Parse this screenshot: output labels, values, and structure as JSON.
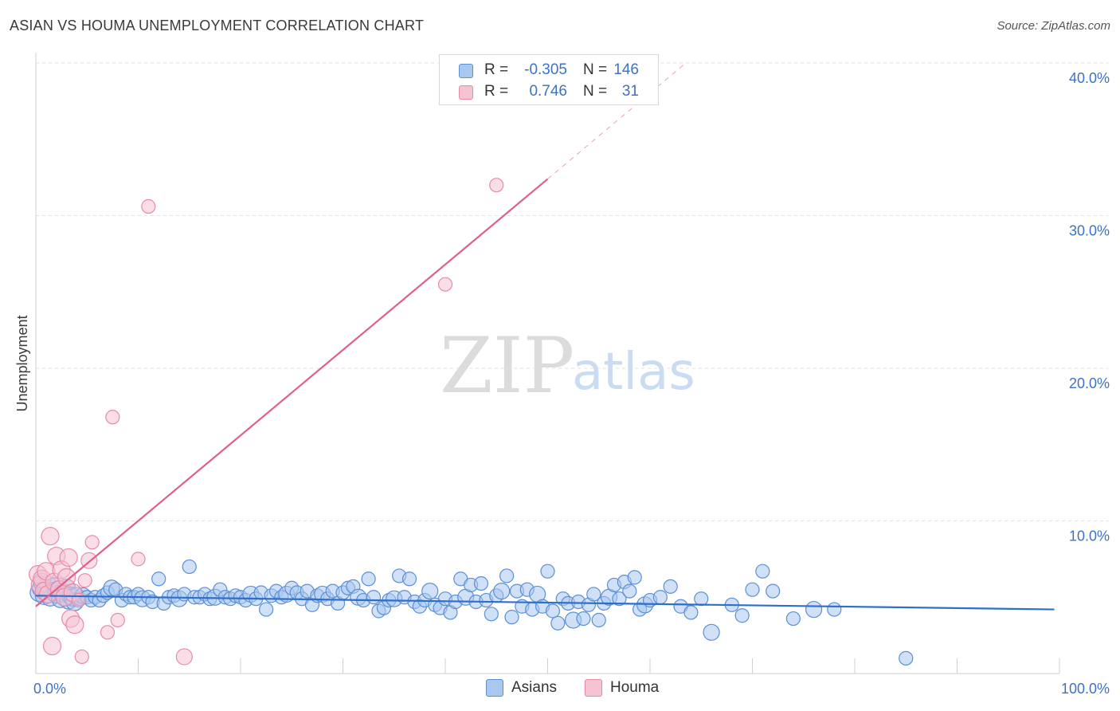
{
  "title": "ASIAN VS HOUMA UNEMPLOYMENT CORRELATION CHART",
  "source": "Source: ZipAtlas.com",
  "watermark": {
    "zip": "ZIP",
    "atlas": "atlas"
  },
  "legend": {
    "rows": [
      {
        "r_label": "R =",
        "r_value": "-0.305",
        "n_label": "N =",
        "n_value": "146"
      },
      {
        "r_label": "R =",
        "r_value": "0.746",
        "n_label": "N =",
        "n_value": "31"
      }
    ]
  },
  "colors": {
    "asians_fill": "#a9c8f0",
    "asians_stroke": "#5b8fd6",
    "asians_line": "#2f6fc9",
    "houma_fill": "#f6c3d3",
    "houma_stroke": "#e88aa8",
    "houma_line": "#e0608a",
    "tick_text": "#3d72c4",
    "grid": "#e2e2e2"
  },
  "chart_data": {
    "type": "scatter",
    "title": "ASIAN VS HOUMA UNEMPLOYMENT CORRELATION CHART",
    "xlabel": "",
    "ylabel": "Unemployment",
    "xlim": [
      0,
      100
    ],
    "ylim": [
      0,
      40
    ],
    "x_tick_labels": [
      {
        "value": 0,
        "label": "0.0%"
      },
      {
        "value": 100,
        "label": "100.0%"
      }
    ],
    "y_tick_labels": [
      {
        "value": 10,
        "label": "10.0%"
      },
      {
        "value": 20,
        "label": "20.0%"
      },
      {
        "value": 30,
        "label": "30.0%"
      },
      {
        "value": 40,
        "label": "40.0%"
      }
    ],
    "series": [
      {
        "name": "Asians",
        "r": -0.305,
        "n": 146,
        "trend": {
          "x": [
            0,
            99.5
          ],
          "y": [
            5.1,
            4.2
          ]
        },
        "points": [
          [
            0.3,
            5.3
          ],
          [
            0.5,
            5.6
          ],
          [
            0.6,
            6.0
          ],
          [
            0.8,
            5.1
          ],
          [
            1,
            5.5
          ],
          [
            1.2,
            5.8
          ],
          [
            1.4,
            5.0
          ],
          [
            1.6,
            5.4
          ],
          [
            1.8,
            5.7
          ],
          [
            2,
            5.2
          ],
          [
            2.2,
            5.5
          ],
          [
            2.4,
            4.9
          ],
          [
            2.6,
            5.3
          ],
          [
            2.8,
            5.0
          ],
          [
            3,
            5.6
          ],
          [
            3.2,
            4.8
          ],
          [
            3.4,
            5.1
          ],
          [
            3.6,
            5.0
          ],
          [
            3.8,
            4.7
          ],
          [
            4,
            5.2
          ],
          [
            4.3,
            4.9
          ],
          [
            4.6,
            5.1
          ],
          [
            5,
            5.0
          ],
          [
            5.4,
            4.8
          ],
          [
            5.8,
            5.0
          ],
          [
            6.2,
            4.8
          ],
          [
            6.6,
            5.1
          ],
          [
            7,
            5.3
          ],
          [
            7.4,
            5.6
          ],
          [
            7.8,
            5.5
          ],
          [
            8.4,
            4.8
          ],
          [
            8.8,
            5.2
          ],
          [
            9.2,
            5.0
          ],
          [
            9.6,
            5.0
          ],
          [
            10,
            5.2
          ],
          [
            10.4,
            4.9
          ],
          [
            11,
            5.0
          ],
          [
            11.4,
            4.7
          ],
          [
            12,
            6.2
          ],
          [
            12.5,
            4.6
          ],
          [
            13,
            5.0
          ],
          [
            13.5,
            5.1
          ],
          [
            14,
            4.9
          ],
          [
            14.5,
            5.2
          ],
          [
            15,
            7.0
          ],
          [
            15.5,
            5.0
          ],
          [
            16,
            5.0
          ],
          [
            16.5,
            5.2
          ],
          [
            17,
            4.9
          ],
          [
            17.5,
            5.0
          ],
          [
            18,
            5.5
          ],
          [
            18.5,
            5.0
          ],
          [
            19,
            4.9
          ],
          [
            19.5,
            5.1
          ],
          [
            20,
            5.0
          ],
          [
            20.5,
            4.8
          ],
          [
            21,
            5.2
          ],
          [
            21.5,
            4.9
          ],
          [
            22,
            5.3
          ],
          [
            22.5,
            4.2
          ],
          [
            23,
            5.1
          ],
          [
            23.5,
            5.4
          ],
          [
            24,
            5.0
          ],
          [
            24.5,
            5.2
          ],
          [
            25,
            5.6
          ],
          [
            25.5,
            5.3
          ],
          [
            26,
            4.9
          ],
          [
            26.5,
            5.4
          ],
          [
            27,
            4.5
          ],
          [
            27.5,
            5.1
          ],
          [
            28,
            5.2
          ],
          [
            28.5,
            4.9
          ],
          [
            29,
            5.4
          ],
          [
            29.5,
            4.6
          ],
          [
            30,
            5.3
          ],
          [
            30.5,
            5.6
          ],
          [
            31,
            5.7
          ],
          [
            31.5,
            5.0
          ],
          [
            32,
            4.8
          ],
          [
            32.5,
            6.2
          ],
          [
            33,
            5.0
          ],
          [
            33.5,
            4.1
          ],
          [
            34,
            4.3
          ],
          [
            34.5,
            4.8
          ],
          [
            35,
            4.9
          ],
          [
            35.5,
            6.4
          ],
          [
            36,
            5.0
          ],
          [
            36.5,
            6.2
          ],
          [
            37,
            4.7
          ],
          [
            37.5,
            4.4
          ],
          [
            38,
            4.8
          ],
          [
            38.5,
            5.4
          ],
          [
            39,
            4.5
          ],
          [
            39.5,
            4.3
          ],
          [
            40,
            4.9
          ],
          [
            40.5,
            4.0
          ],
          [
            41,
            4.7
          ],
          [
            41.5,
            6.2
          ],
          [
            42,
            5.0
          ],
          [
            42.5,
            5.8
          ],
          [
            43,
            4.7
          ],
          [
            43.5,
            5.9
          ],
          [
            44,
            4.8
          ],
          [
            44.5,
            3.9
          ],
          [
            45,
            5.1
          ],
          [
            45.5,
            5.4
          ],
          [
            46,
            6.4
          ],
          [
            46.5,
            3.7
          ],
          [
            47,
            5.4
          ],
          [
            47.5,
            4.4
          ],
          [
            48,
            5.5
          ],
          [
            48.5,
            4.2
          ],
          [
            49,
            5.2
          ],
          [
            49.5,
            4.4
          ],
          [
            50,
            6.7
          ],
          [
            50.5,
            4.1
          ],
          [
            51,
            3.3
          ],
          [
            51.5,
            4.9
          ],
          [
            52,
            4.6
          ],
          [
            52.5,
            3.5
          ],
          [
            53,
            4.7
          ],
          [
            53.5,
            3.6
          ],
          [
            54,
            4.5
          ],
          [
            54.5,
            5.2
          ],
          [
            55,
            3.5
          ],
          [
            55.5,
            4.6
          ],
          [
            56,
            5.0
          ],
          [
            56.5,
            5.8
          ],
          [
            57,
            4.9
          ],
          [
            57.5,
            6.0
          ],
          [
            58,
            5.4
          ],
          [
            58.5,
            6.3
          ],
          [
            59,
            4.2
          ],
          [
            59.5,
            4.5
          ],
          [
            60,
            4.8
          ],
          [
            61,
            5.0
          ],
          [
            62,
            5.7
          ],
          [
            63,
            4.4
          ],
          [
            64,
            4.0
          ],
          [
            65,
            4.9
          ],
          [
            66,
            2.7
          ],
          [
            68,
            4.5
          ],
          [
            69,
            3.8
          ],
          [
            70,
            5.5
          ],
          [
            71,
            6.7
          ],
          [
            72,
            5.4
          ],
          [
            74,
            3.6
          ],
          [
            76,
            4.2
          ],
          [
            78,
            4.2
          ],
          [
            85,
            1.0
          ]
        ]
      },
      {
        "name": "Houma",
        "r": 0.746,
        "n": 31,
        "trend": {
          "x": [
            0,
            50
          ],
          "y": [
            4.4,
            32.4
          ]
        },
        "trend_dashed": {
          "x": [
            50,
            63.5
          ],
          "y": [
            32.4,
            40
          ]
        },
        "points": [
          [
            0.2,
            6.5
          ],
          [
            0.4,
            5.8
          ],
          [
            0.6,
            6.2
          ],
          [
            0.8,
            5.4
          ],
          [
            1,
            6.7
          ],
          [
            1.2,
            5.2
          ],
          [
            1.4,
            9.0
          ],
          [
            1.6,
            1.8
          ],
          [
            1.8,
            6.0
          ],
          [
            2,
            7.7
          ],
          [
            2.3,
            5.5
          ],
          [
            2.5,
            6.8
          ],
          [
            2.8,
            5.0
          ],
          [
            3,
            6.3
          ],
          [
            3.2,
            7.6
          ],
          [
            3.4,
            3.6
          ],
          [
            3.6,
            5.3
          ],
          [
            3.8,
            3.2
          ],
          [
            4.2,
            4.8
          ],
          [
            4.5,
            1.1
          ],
          [
            4.8,
            6.1
          ],
          [
            5.2,
            7.4
          ],
          [
            5.5,
            8.6
          ],
          [
            7,
            2.7
          ],
          [
            7.5,
            16.8
          ],
          [
            8,
            3.5
          ],
          [
            10,
            7.5
          ],
          [
            11,
            30.6
          ],
          [
            14.5,
            1.1
          ],
          [
            40,
            25.5
          ],
          [
            45,
            32.0
          ]
        ]
      }
    ],
    "legend": [
      "Asians",
      "Houma"
    ]
  }
}
